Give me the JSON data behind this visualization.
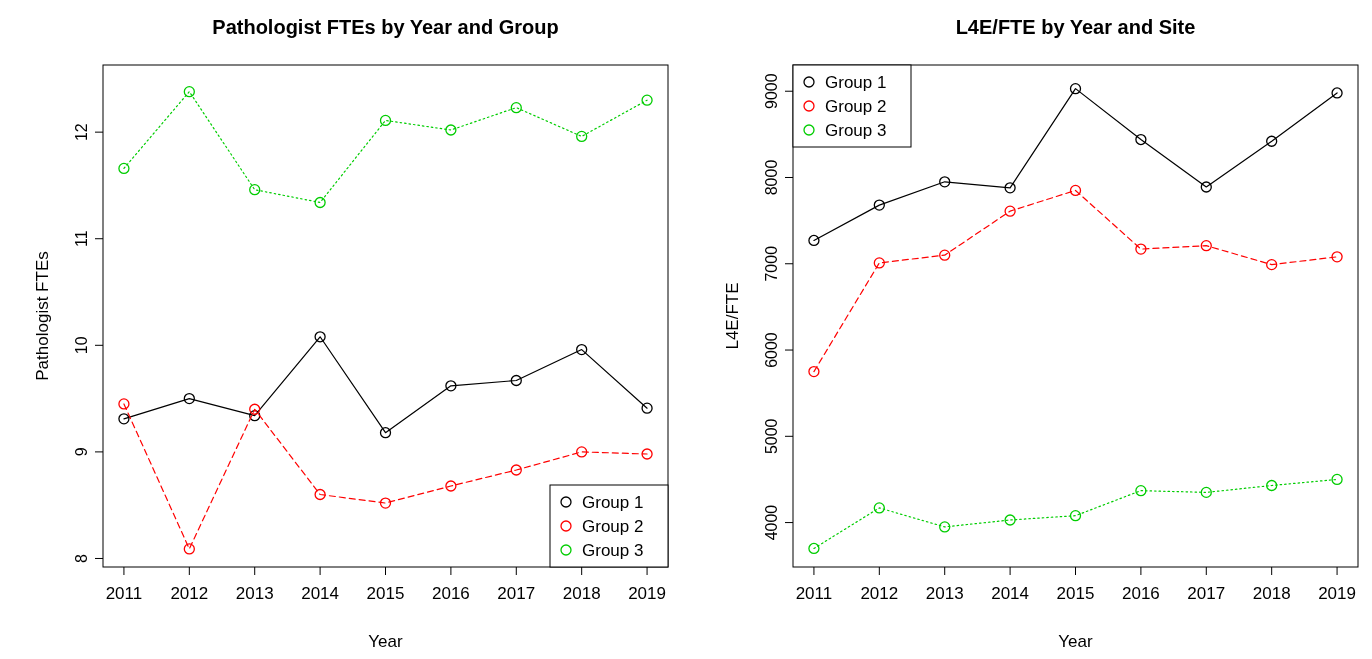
{
  "chart_data": [
    {
      "type": "line",
      "title": "Pathologist FTEs by Year and Group",
      "xlabel": "Year",
      "ylabel": "Pathologist FTEs",
      "x": [
        2011,
        2012,
        2013,
        2014,
        2015,
        2016,
        2017,
        2018,
        2019
      ],
      "xlim": [
        2010.68,
        2019.32
      ],
      "xticks": [
        2011,
        2012,
        2013,
        2014,
        2015,
        2016,
        2017,
        2018,
        2019
      ],
      "ylim": [
        7.92,
        12.63
      ],
      "yticks": [
        8,
        9,
        10,
        11,
        12
      ],
      "marker": "circle",
      "legend": "bottom right",
      "series": [
        {
          "name": "Group 1",
          "color": "#000000",
          "line_style": "solid",
          "values": [
            9.31,
            9.5,
            9.34,
            10.08,
            9.18,
            9.62,
            9.67,
            9.96,
            9.41
          ]
        },
        {
          "name": "Group 2",
          "color": "#ff0000",
          "line_style": "dashed",
          "values": [
            9.45,
            8.09,
            9.4,
            8.6,
            8.52,
            8.68,
            8.83,
            9.0,
            8.98
          ]
        },
        {
          "name": "Group 3",
          "color": "#00cd00",
          "line_style": "dotted",
          "values": [
            11.66,
            12.38,
            11.46,
            11.34,
            12.11,
            12.02,
            12.23,
            11.96,
            12.3
          ]
        }
      ]
    },
    {
      "type": "line",
      "title": "L4E/FTE by Year and Site",
      "xlabel": "Year",
      "ylabel": "L4E/FTE",
      "x": [
        2011,
        2012,
        2013,
        2014,
        2015,
        2016,
        2017,
        2018,
        2019
      ],
      "xlim": [
        2010.68,
        2019.32
      ],
      "xticks": [
        2011,
        2012,
        2013,
        2014,
        2015,
        2016,
        2017,
        2018,
        2019
      ],
      "ylim": [
        3485,
        9304
      ],
      "yticks": [
        4000,
        5000,
        6000,
        7000,
        8000,
        9000
      ],
      "marker": "circle",
      "legend": "top left",
      "series": [
        {
          "name": "Group 1",
          "color": "#000000",
          "line_style": "solid",
          "values": [
            7270,
            7680,
            7950,
            7880,
            9030,
            8440,
            7890,
            8420,
            8980
          ]
        },
        {
          "name": "Group 2",
          "color": "#ff0000",
          "line_style": "dashed",
          "values": [
            5750,
            7010,
            7100,
            7610,
            7850,
            7170,
            7210,
            6990,
            7080
          ]
        },
        {
          "name": "Group 3",
          "color": "#00cd00",
          "line_style": "dotted",
          "values": [
            3700,
            4170,
            3950,
            4030,
            4080,
            4370,
            4350,
            4430,
            4500
          ]
        }
      ]
    }
  ]
}
